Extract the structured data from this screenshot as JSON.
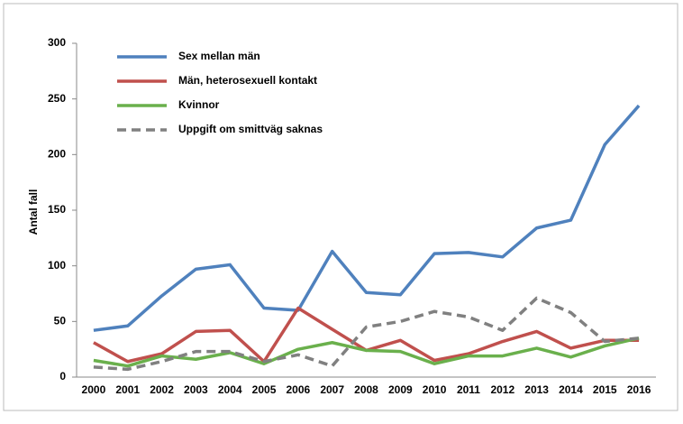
{
  "chart_data": {
    "type": "line",
    "y_label": "Antal fall",
    "categories": [
      "2000",
      "2001",
      "2002",
      "2003",
      "2004",
      "2005",
      "2006",
      "2007",
      "2008",
      "2009",
      "2010",
      "2011",
      "2012",
      "2013",
      "2014",
      "2015",
      "2016"
    ],
    "series": [
      {
        "name": "Sex mellan män",
        "color": "#4f81bd",
        "dashed": false,
        "values": [
          42,
          46,
          73,
          97,
          101,
          62,
          60,
          113,
          76,
          74,
          111,
          112,
          108,
          134,
          141,
          209,
          244
        ]
      },
      {
        "name": "Män, heterosexuell kontakt",
        "color": "#c0504d",
        "dashed": false,
        "values": [
          31,
          14,
          21,
          41,
          42,
          14,
          62,
          43,
          24,
          33,
          15,
          21,
          32,
          41,
          26,
          33,
          33
        ]
      },
      {
        "name": "Kvinnor",
        "color": "#6ab04c",
        "dashed": false,
        "values": [
          15,
          10,
          19,
          16,
          22,
          12,
          25,
          31,
          24,
          23,
          12,
          19,
          19,
          26,
          18,
          28,
          35
        ]
      },
      {
        "name": "Uppgift om smittväg saknas",
        "color": "#808080",
        "dashed": true,
        "values": [
          9,
          7,
          14,
          23,
          23,
          14,
          20,
          10,
          45,
          50,
          59,
          54,
          42,
          71,
          58,
          32,
          35
        ]
      }
    ],
    "ylim": [
      0,
      300
    ],
    "yticks": [
      0,
      50,
      100,
      150,
      200,
      250,
      300
    ],
    "grid": false,
    "legend": "top-left"
  }
}
